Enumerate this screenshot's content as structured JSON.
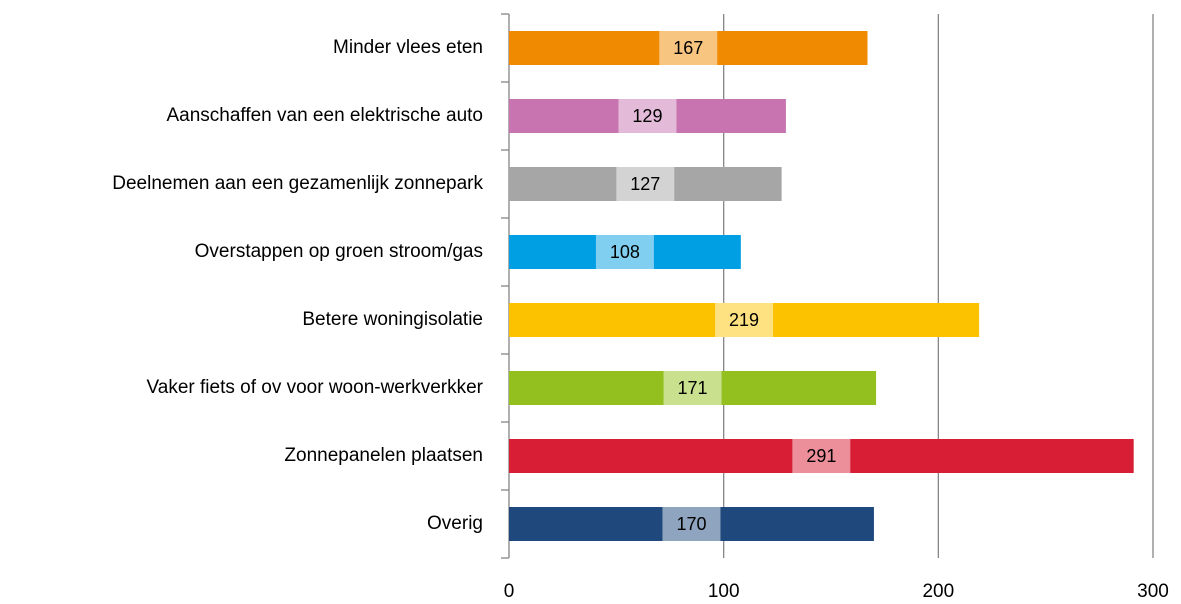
{
  "chart_data": {
    "type": "bar",
    "orientation": "horizontal",
    "categories": [
      "Minder vlees eten",
      "Aanschaffen van een elektrische auto",
      "Deelnemen aan een gezamenlijk zonnepark",
      "Overstappen op groen stroom/gas",
      "Betere woningisolatie",
      "Vaker fiets of ov voor woon-werkverkker",
      "Zonnepanelen plaatsen",
      "Overig"
    ],
    "values": [
      167,
      129,
      127,
      108,
      219,
      171,
      291,
      170
    ],
    "colors": [
      "#f08a00",
      "#c774b0",
      "#a6a6a6",
      "#009fe3",
      "#fcc200",
      "#93c01f",
      "#d81e34",
      "#1f497d"
    ],
    "xlim": [
      0,
      300
    ],
    "xticks": [
      0,
      100,
      200,
      300
    ],
    "grid": true
  }
}
